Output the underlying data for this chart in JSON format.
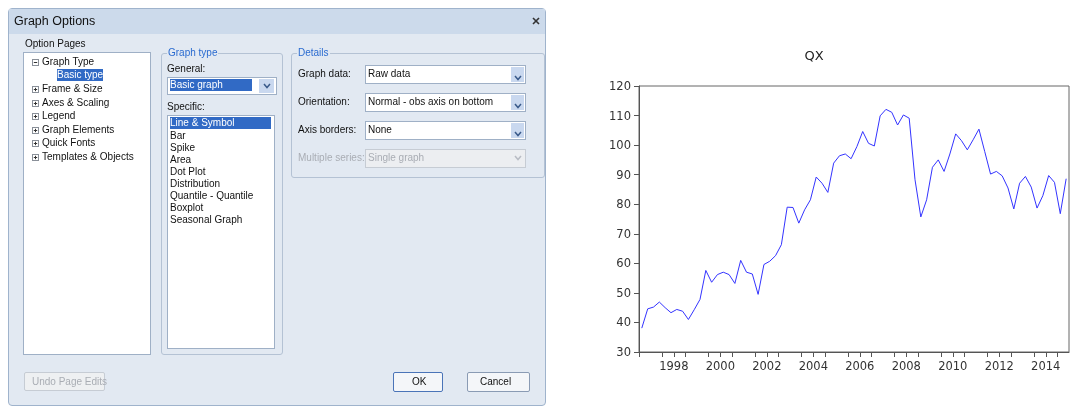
{
  "chart_data": [
    {
      "type": "other",
      "annotations": [
        "Graph Options",
        "Option Pages",
        "Graph Type",
        "Basic type",
        "Frame & Size",
        "Axes & Scaling",
        "Legend",
        "Graph Elements",
        "Quick Fonts",
        "Templates & Objects",
        "Graph type",
        "General:",
        "Basic graph",
        "Specific:",
        "Line & Symbol",
        "Bar",
        "Spike",
        "Area",
        "Dot Plot",
        "Distribution",
        "Quantile - Quantile",
        "Boxplot",
        "Seasonal Graph",
        "Details",
        "Graph data:",
        "Raw data",
        "Orientation:",
        "Normal - obs axis on bottom",
        "Axis borders:",
        "None",
        "Multiple series:",
        "Single graph",
        "Undo Page Edits",
        "OK",
        "Cancel"
      ]
    },
    {
      "type": "line",
      "title": "QX",
      "marker": "none",
      "x": [
        1997.125,
        1997.375,
        1997.625,
        1997.875,
        1998.125,
        1998.375,
        1998.625,
        1998.875,
        1999.125,
        1999.375,
        1999.625,
        1999.875,
        2000.125,
        2000.375,
        2000.625,
        2000.875,
        2001.125,
        2001.375,
        2001.625,
        2001.875,
        2002.125,
        2002.375,
        2002.625,
        2002.875,
        2003.125,
        2003.375,
        2003.625,
        2003.875,
        2004.125,
        2004.375,
        2004.625,
        2004.875,
        2005.125,
        2005.375,
        2005.625,
        2005.875,
        2006.125,
        2006.375,
        2006.625,
        2006.875,
        2007.125,
        2007.375,
        2007.625,
        2007.875,
        2008.125,
        2008.375,
        2008.625,
        2008.875,
        2009.125,
        2009.375,
        2009.625,
        2009.875,
        2010.125,
        2010.375,
        2010.625,
        2010.875,
        2011.125,
        2011.375,
        2011.625,
        2011.875,
        2012.125,
        2012.375,
        2012.625,
        2012.875,
        2013.125,
        2013.375,
        2013.625,
        2013.875,
        2014.125,
        2014.375,
        2014.625,
        2014.875,
        2015.125,
        2015.375
      ],
      "series": [
        {
          "color": "#3333ff",
          "values": [
            38.2,
            44.6,
            45.2,
            46.9,
            45.0,
            43.3,
            44.4,
            43.8,
            41.0,
            44.3,
            47.8,
            57.6,
            53.6,
            56.2,
            57.0,
            56.2,
            53.2,
            61.0,
            57.0,
            56.4,
            49.5,
            59.6,
            60.7,
            62.6,
            66.3,
            79.0,
            78.9,
            73.6,
            78.1,
            81.5,
            89.2,
            87.1,
            84.0,
            93.9,
            96.4,
            97.0,
            95.4,
            99.5,
            104.6,
            100.6,
            99.7,
            109.9,
            112.1,
            111.1,
            106.8,
            110.2,
            109.1,
            88.3,
            75.7,
            81.5,
            92.5,
            95.0,
            91.1,
            97.0,
            103.8,
            101.5,
            98.4,
            101.8,
            105.4,
            97.8,
            90.2,
            91.1,
            89.6,
            85.5,
            78.4,
            87.1,
            89.4,
            85.8,
            78.7,
            82.9,
            89.7,
            87.4,
            76.8,
            88.5
          ]
        }
      ],
      "xlim": [
        1997,
        2015.5
      ],
      "xticks": [
        {
          "value": 1997,
          "label": null
        },
        {
          "value": 1998,
          "label": null
        },
        {
          "value": 1998.5,
          "label": "1998"
        },
        {
          "value": 1999,
          "label": null
        },
        {
          "value": 2000,
          "label": null
        },
        {
          "value": 2000.5,
          "label": "2000"
        },
        {
          "value": 2001,
          "label": null
        },
        {
          "value": 2002,
          "label": null
        },
        {
          "value": 2002.5,
          "label": "2002"
        },
        {
          "value": 2003,
          "label": null
        },
        {
          "value": 2004,
          "label": null
        },
        {
          "value": 2004.5,
          "label": "2004"
        },
        {
          "value": 2005,
          "label": null
        },
        {
          "value": 2006,
          "label": null
        },
        {
          "value": 2006.5,
          "label": "2006"
        },
        {
          "value": 2007,
          "label": null
        },
        {
          "value": 2008,
          "label": null
        },
        {
          "value": 2008.5,
          "label": "2008"
        },
        {
          "value": 2009,
          "label": null
        },
        {
          "value": 2010,
          "label": null
        },
        {
          "value": 2010.5,
          "label": "2010"
        },
        {
          "value": 2011,
          "label": null
        },
        {
          "value": 2012,
          "label": null
        },
        {
          "value": 2012.5,
          "label": "2012"
        },
        {
          "value": 2013,
          "label": null
        },
        {
          "value": 2014,
          "label": null
        },
        {
          "value": 2014.5,
          "label": "2014"
        },
        {
          "value": 2015,
          "label": null
        }
      ],
      "ylim": [
        30,
        120
      ],
      "yticks": [
        30,
        40,
        50,
        60,
        70,
        80,
        90,
        100,
        110,
        120
      ]
    }
  ]
}
